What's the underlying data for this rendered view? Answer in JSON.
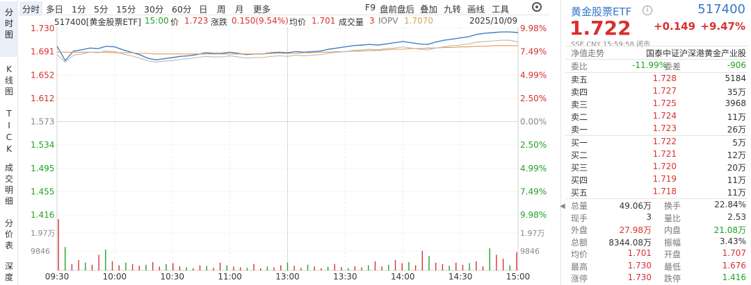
{
  "side_tabs": [
    "分时图",
    "K线图",
    "TICK",
    "成交明细",
    "分价表",
    "深度"
  ],
  "periods": [
    "分时",
    "多日",
    "1分",
    "5分",
    "15分",
    "30分",
    "60分",
    "日",
    "周",
    "月",
    "更多"
  ],
  "tools": [
    "F9",
    "盘前盘后",
    "叠加",
    "九转",
    "画线",
    "工具"
  ],
  "info": {
    "name": "517400[黄金股票ETF]",
    "time": "15:00",
    "price_label": "价",
    "price": "1.723",
    "change_label": "涨跌",
    "change": "0.150(9.54%)",
    "avg_label": "均价",
    "avg": "1.701",
    "vol_label": "成交量",
    "vol": "3",
    "iopv_label": "IOPV",
    "iopv": "1.7070",
    "date": "2025/10/09"
  },
  "chart_data": {
    "type": "line",
    "prev_close": 1.573,
    "price_ticks": [
      "1.730",
      "1.691",
      "1.652",
      "1.612",
      "1.573",
      "1.534",
      "1.495",
      "1.455",
      "1.416"
    ],
    "pct_ticks": [
      "9.98%",
      "7.49%",
      "4.99%",
      "2.50%",
      "0.00%",
      "2.50%",
      "4.99%",
      "7.49%",
      "9.98%"
    ],
    "volume_ticks": [
      "1.97万",
      "9846"
    ],
    "x_labels": [
      "09:30",
      "10:00",
      "10:30",
      "11:00",
      "13:00",
      "13:30",
      "14:00",
      "14:30",
      "15:00"
    ],
    "ylim": [
      1.416,
      1.73
    ],
    "series": [
      {
        "color": "#3f7ec6",
        "values": [
          1.7,
          1.676,
          1.692,
          1.694,
          1.697,
          1.696,
          1.7,
          1.699,
          1.694,
          1.69,
          1.686,
          1.68,
          1.677,
          1.679,
          1.681,
          1.683,
          1.684,
          1.686,
          1.689,
          1.688,
          1.688,
          1.69,
          1.688,
          1.686,
          1.687,
          1.687,
          1.689,
          1.69,
          1.689,
          1.691,
          1.69,
          1.691,
          1.692,
          1.695,
          1.697,
          1.699,
          1.701,
          1.702,
          1.703,
          1.702,
          1.704,
          1.706,
          1.708,
          1.706,
          1.704,
          1.703,
          1.707,
          1.71,
          1.712,
          1.714,
          1.716,
          1.72,
          1.722,
          1.723,
          1.724,
          1.724,
          1.723
        ]
      },
      {
        "color": "#e89a4a",
        "values": [
          1.69,
          1.69,
          1.69,
          1.69,
          1.69,
          1.69,
          1.69,
          1.689,
          1.689,
          1.689,
          1.688,
          1.688,
          1.687,
          1.687,
          1.687,
          1.687,
          1.687,
          1.687,
          1.687,
          1.687,
          1.687,
          1.687,
          1.687,
          1.687,
          1.687,
          1.687,
          1.688,
          1.688,
          1.688,
          1.688,
          1.689,
          1.689,
          1.69,
          1.69,
          1.691,
          1.691,
          1.692,
          1.692,
          1.693,
          1.693,
          1.694,
          1.695,
          1.695,
          1.696,
          1.696,
          1.697,
          1.697,
          1.698,
          1.698,
          1.699,
          1.699,
          1.7,
          1.7,
          1.701,
          1.701,
          1.701,
          1.701
        ]
      },
      {
        "color": "#b9b9b9",
        "values": [
          1.686,
          1.673,
          1.685,
          1.687,
          1.69,
          1.689,
          1.692,
          1.691,
          1.687,
          1.684,
          1.68,
          1.676,
          1.673,
          1.675,
          1.676,
          1.678,
          1.679,
          1.681,
          1.683,
          1.682,
          1.682,
          1.684,
          1.682,
          1.68,
          1.681,
          1.681,
          1.683,
          1.684,
          1.683,
          1.685,
          1.684,
          1.685,
          1.686,
          1.688,
          1.69,
          1.691,
          1.693,
          1.694,
          1.695,
          1.694,
          1.696,
          1.697,
          1.699,
          1.697,
          1.695,
          1.694,
          1.697,
          1.699,
          1.701,
          1.702,
          1.704,
          1.707,
          1.708,
          1.709,
          1.71,
          1.71,
          1.707
        ]
      }
    ]
  },
  "volume": [
    19700,
    9000,
    2500,
    4000,
    3000,
    2200,
    6000,
    8000,
    3500,
    2000,
    3000,
    2500,
    1800,
    2200,
    3200,
    1500,
    2500,
    2800,
    1600,
    1200,
    900,
    2000,
    1700,
    1000,
    3000,
    2000,
    1500,
    1200,
    1000,
    2500,
    800,
    1500,
    1200,
    2000,
    3000,
    1800,
    1000,
    2200,
    1500,
    800,
    1400,
    2500,
    1300,
    900,
    1600,
    1200,
    2000,
    3500,
    1500,
    2200,
    4000,
    2800,
    3200,
    2000,
    7500,
    5500,
    3000,
    2500,
    1800,
    3000,
    2200,
    2800,
    3500,
    1500,
    8500,
    6000,
    4500,
    2000,
    7000
  ],
  "right_panel": {
    "title": "黄金股票ETF",
    "code": "517400",
    "price": "1.722",
    "change": "+0.149",
    "pct": "+9.47%",
    "meta": "SSE  CNY  15:59:58  闭市",
    "nav_label": "净值走势",
    "fund_name": "国泰中证沪深港黄金产业股",
    "wb_label": "委比",
    "wb": "-11.99%",
    "wc_label": "委差",
    "wc": "-906",
    "asks": [
      {
        "label": "卖五",
        "price": "1.728",
        "vol": "5184"
      },
      {
        "label": "卖四",
        "price": "1.727",
        "vol": "35万"
      },
      {
        "label": "卖三",
        "price": "1.725",
        "vol": "3968"
      },
      {
        "label": "卖二",
        "price": "1.724",
        "vol": "11万"
      },
      {
        "label": "卖一",
        "price": "1.723",
        "vol": "26万"
      }
    ],
    "bids": [
      {
        "label": "买一",
        "price": "1.722",
        "vol": "5万"
      },
      {
        "label": "买二",
        "price": "1.721",
        "vol": "12万"
      },
      {
        "label": "买三",
        "price": "1.720",
        "vol": "20万"
      },
      {
        "label": "买四",
        "price": "1.719",
        "vol": "11万"
      },
      {
        "label": "买五",
        "price": "1.718",
        "vol": "11万"
      }
    ],
    "stats": [
      {
        "k1": "总量",
        "v1": "49.06万",
        "c1": "dark",
        "k2": "换手",
        "v2": "22.84%",
        "c2": "dark"
      },
      {
        "k1": "现手",
        "v1": "3",
        "c1": "dark",
        "k2": "量比",
        "v2": "2.53",
        "c2": "dark"
      },
      {
        "k1": "外盘",
        "v1": "27.98万",
        "c1": "red",
        "k2": "内盘",
        "v2": "21.08万",
        "c2": "green"
      },
      {
        "k1": "总额",
        "v1": "8344.08万",
        "c1": "dark",
        "k2": "振幅",
        "v2": "3.43%",
        "c2": "dark"
      },
      {
        "k1": "均价",
        "v1": "1.701",
        "c1": "red",
        "k2": "开盘",
        "v2": "1.707",
        "c2": "red"
      },
      {
        "k1": "最高",
        "v1": "1.730",
        "c1": "red",
        "k2": "最低",
        "v2": "1.676",
        "c2": "red"
      },
      {
        "k1": "涨停",
        "v1": "1.730",
        "c1": "red",
        "k2": "跌停",
        "v2": "1.416",
        "c2": "green"
      }
    ]
  }
}
